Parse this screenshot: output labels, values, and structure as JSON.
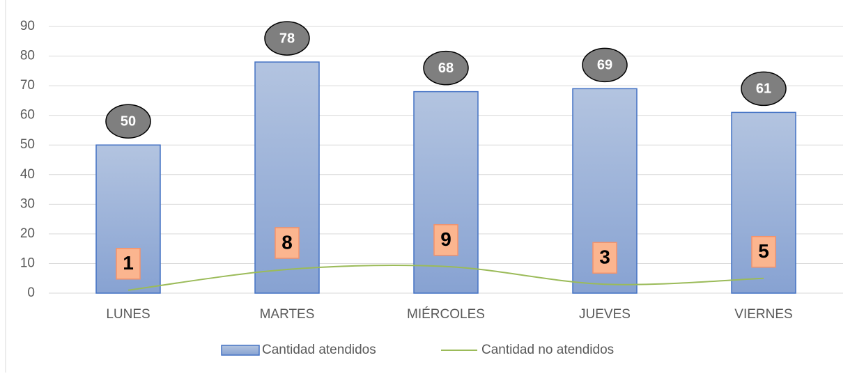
{
  "chart_data": {
    "type": "bar",
    "categories": [
      "LUNES",
      "MARTES",
      "MIÉRCOLES",
      "JUEVES",
      "VIERNES"
    ],
    "series": [
      {
        "name": "Cantidad atendidos",
        "type": "bar",
        "color": "#4472c4",
        "values": [
          50,
          78,
          68,
          69,
          61
        ]
      },
      {
        "name": "Cantidad no atendidos",
        "type": "line",
        "color": "#9bbb59",
        "values": [
          1,
          8,
          9,
          3,
          5
        ]
      }
    ],
    "ylim": [
      0,
      90
    ],
    "yticks": [
      0,
      10,
      20,
      30,
      40,
      50,
      60,
      70,
      80,
      90
    ],
    "grid": true,
    "legend": "bottom"
  }
}
